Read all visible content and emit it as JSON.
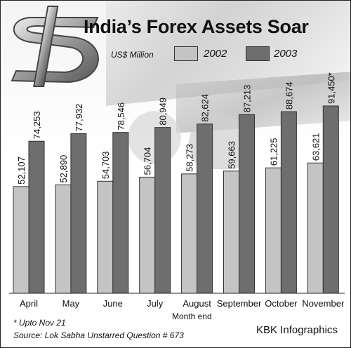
{
  "title": "India’s Forex Assets Soar",
  "unit": "US$ Million",
  "footnote": "* Upto Nov 21",
  "source": "Source: Lok Sabha Unstarred Question # 673",
  "credit": "KBK Infographics",
  "colors": {
    "series_2002": "#c4c4c4",
    "series_2003": "#6e6e6e"
  },
  "chart_data": {
    "type": "bar",
    "title": "India’s Forex Assets Soar",
    "xlabel": "Month end",
    "ylabel": "",
    "categories": [
      "April",
      "May",
      "June",
      "July",
      "August",
      "September",
      "October",
      "November"
    ],
    "series": [
      {
        "name": "2002",
        "values": [
          52107,
          52890,
          54703,
          56704,
          58273,
          59663,
          61225,
          63621
        ],
        "labels": [
          "52,107",
          "52,890",
          "54,703",
          "56,704",
          "58,273",
          "59,663",
          "61,225",
          "63,621"
        ]
      },
      {
        "name": "2003",
        "values": [
          74253,
          77932,
          78546,
          80949,
          82624,
          87213,
          88674,
          91450
        ],
        "labels": [
          "74,253",
          "77,932",
          "78,546",
          "80,949",
          "82,624",
          "87,213",
          "88,674",
          "91,450*"
        ]
      }
    ],
    "legend": "top"
  }
}
